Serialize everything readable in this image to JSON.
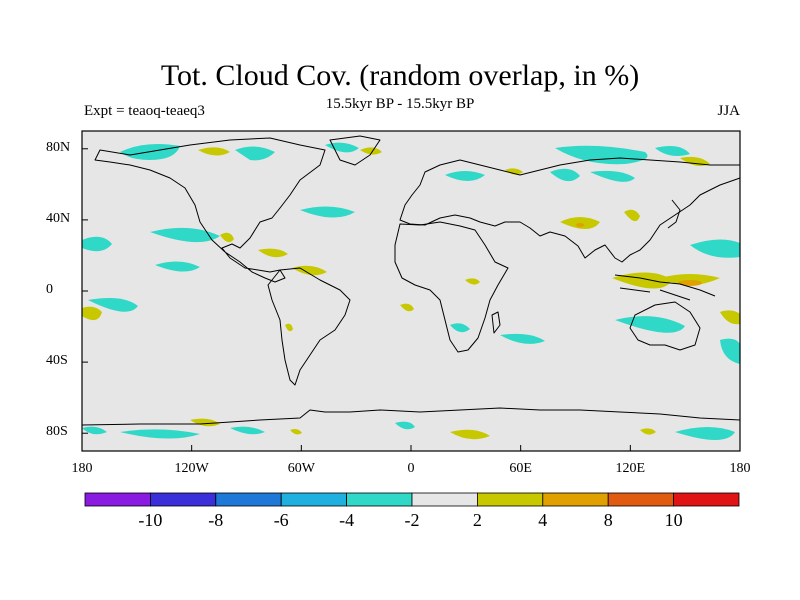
{
  "title": "Tot. Cloud Cov. (random overlap, in %)",
  "subtitle": "15.5kyr BP - 15.5kyr BP",
  "left_label": "Expt = teaoq-teaeq3",
  "right_label": "JJA",
  "y_ticks": [
    {
      "label": "80N",
      "lat": 80
    },
    {
      "label": "40N",
      "lat": 40
    },
    {
      "label": "0",
      "lat": 0
    },
    {
      "label": "40S",
      "lat": -40
    },
    {
      "label": "80S",
      "lat": -80
    }
  ],
  "x_ticks": [
    {
      "label": "180",
      "lon": -180
    },
    {
      "label": "120W",
      "lon": -120
    },
    {
      "label": "60W",
      "lon": -60
    },
    {
      "label": "0",
      "lon": 0
    },
    {
      "label": "60E",
      "lon": 60
    },
    {
      "label": "120E",
      "lon": 120
    },
    {
      "label": "180",
      "lon": 180
    }
  ],
  "colorbar": {
    "colors": [
      "#8a1be0",
      "#3a2fd8",
      "#1f78d8",
      "#20b0e0",
      "#30d8c8",
      "#e6e6e6",
      "#c8c800",
      "#e0a000",
      "#e05a10",
      "#e01414"
    ],
    "labels": [
      "-10",
      "-8",
      "-6",
      "-4",
      "-2",
      "2",
      "4",
      "8",
      "10"
    ]
  },
  "colors": {
    "background": "#e6e6e6",
    "negative": "#30d8c8",
    "positive": "#c8c800",
    "orange": "#e0a000",
    "coast": "#000000"
  }
}
